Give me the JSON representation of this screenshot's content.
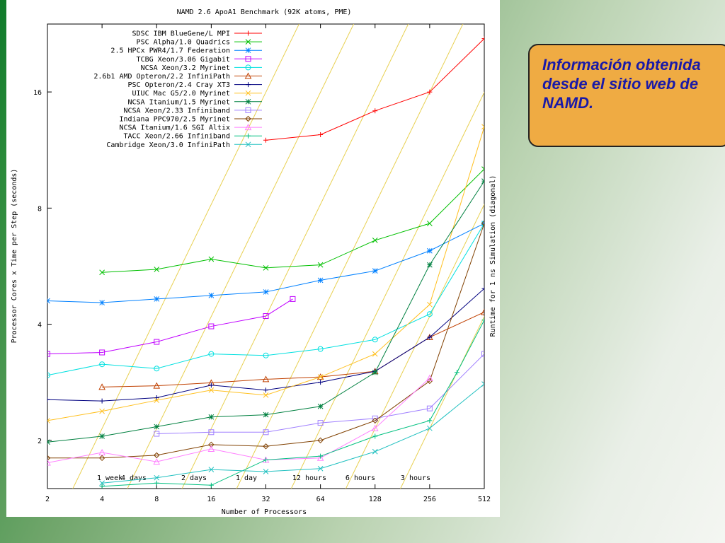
{
  "callout": {
    "text": "Información obtenida desde el sitio web de NAMD."
  },
  "chart_data": {
    "type": "line",
    "title": "NAMD 2.6 ApoA1 Benchmark (92K atoms, PME)",
    "xlabel": "Number of Processors",
    "ylabel": "Processor Cores x Time per Step (seconds)",
    "y2label": "Runtime for 1 ns Simulation (diagonal)",
    "x_scale": "log2",
    "y_scale": "log2",
    "x_ticks": [
      2,
      4,
      8,
      16,
      32,
      64,
      128,
      256,
      512
    ],
    "y_ticks": [
      2,
      4,
      8,
      16
    ],
    "xlim": [
      2,
      512
    ],
    "ylim": [
      1.5,
      24
    ],
    "legend_position": "top-left",
    "diagonal_labels": [
      "1 week",
      "4 days",
      "2 days",
      "1 day",
      "12 hours",
      "6 hours",
      "3 hours"
    ],
    "series": [
      {
        "name": "SDSC IBM BlueGene/L MPI",
        "color": "#ff0000",
        "marker": "plus",
        "x": [
          32,
          64,
          128,
          256,
          512
        ],
        "y": [
          12.0,
          12.4,
          14.3,
          16.0,
          22.0
        ]
      },
      {
        "name": "PSC Alpha/1.0 Quadrics",
        "color": "#00c000",
        "marker": "x",
        "x": [
          4,
          8,
          16,
          32,
          64,
          128,
          256,
          512
        ],
        "y": [
          5.45,
          5.55,
          5.9,
          5.6,
          5.7,
          6.6,
          7.3,
          10.1
        ]
      },
      {
        "name": "2.5 HPCx PWR4/1.7 Federation",
        "color": "#0080ff",
        "marker": "star",
        "x": [
          2,
          4,
          8,
          16,
          32,
          64,
          128,
          256,
          512
        ],
        "y": [
          4.6,
          4.55,
          4.65,
          4.75,
          4.85,
          5.2,
          5.5,
          6.2,
          7.3
        ]
      },
      {
        "name": "TCBG Xeon/3.06 Gigabit",
        "color": "#c000ff",
        "marker": "square",
        "x": [
          2,
          4,
          8,
          16,
          32,
          45
        ],
        "y": [
          3.35,
          3.38,
          3.6,
          3.95,
          4.2,
          4.65
        ]
      },
      {
        "name": "NCSA Xeon/3.2 Myrinet",
        "color": "#00e0e0",
        "marker": "circle",
        "x": [
          2,
          4,
          8,
          16,
          32,
          64,
          128,
          256,
          512
        ],
        "y": [
          2.95,
          3.15,
          3.07,
          3.35,
          3.32,
          3.45,
          3.65,
          4.25,
          7.3
        ]
      },
      {
        "name": "2.6b1 AMD Opteron/2.2 InfiniPath",
        "color": "#c04000",
        "marker": "triangle",
        "x": [
          4,
          8,
          16,
          32,
          64,
          128,
          256,
          512
        ],
        "y": [
          2.75,
          2.77,
          2.82,
          2.88,
          2.92,
          3.02,
          3.7,
          4.3
        ]
      },
      {
        "name": "PSC Opteron/2.4 Cray XT3",
        "color": "#000080",
        "marker": "plus",
        "x": [
          2,
          4,
          8,
          16,
          32,
          64,
          128,
          256,
          512
        ],
        "y": [
          2.55,
          2.53,
          2.58,
          2.78,
          2.7,
          2.83,
          3.02,
          3.7,
          4.95
        ]
      },
      {
        "name": "UIUC Mac G5/2.0 Myrinet",
        "color": "#ffc020",
        "marker": "x",
        "x": [
          2,
          4,
          8,
          16,
          32,
          64,
          128,
          256,
          512
        ],
        "y": [
          2.25,
          2.38,
          2.54,
          2.7,
          2.62,
          2.92,
          3.35,
          4.5,
          13.0
        ]
      },
      {
        "name": "NCSA Itanium/1.5 Myrinet",
        "color": "#008040",
        "marker": "star",
        "x": [
          2,
          4,
          8,
          16,
          32,
          64,
          128,
          256,
          512
        ],
        "y": [
          1.98,
          2.05,
          2.17,
          2.3,
          2.33,
          2.45,
          3.0,
          5.7,
          9.4
        ]
      },
      {
        "name": "NCSA Xeon/2.33 Infiniband",
        "color": "#a080ff",
        "marker": "square",
        "x": [
          8,
          16,
          32,
          64,
          128,
          256,
          512
        ],
        "y": [
          2.08,
          2.1,
          2.1,
          2.22,
          2.28,
          2.42,
          3.35
        ]
      },
      {
        "name": "Indiana PPC970/2.5 Myrinet",
        "color": "#804000",
        "marker": "diamond",
        "x": [
          2,
          4,
          8,
          16,
          32,
          64,
          128,
          256,
          512
        ],
        "y": [
          1.8,
          1.8,
          1.83,
          1.95,
          1.93,
          2.0,
          2.25,
          2.85,
          7.3
        ]
      },
      {
        "name": "NCSA Itanium/1.6 SGI Altix",
        "color": "#ff80ff",
        "marker": "triangle",
        "x": [
          2,
          4,
          8,
          16,
          32,
          64,
          128,
          256
        ],
        "y": [
          1.75,
          1.86,
          1.76,
          1.9,
          1.78,
          1.8,
          2.15,
          2.9
        ]
      },
      {
        "name": "TACC Xeon/2.66 Infiniband",
        "color": "#00c080",
        "marker": "plus",
        "x": [
          4,
          8,
          16,
          32,
          64,
          128,
          256,
          362,
          512
        ],
        "y": [
          1.52,
          1.55,
          1.53,
          1.78,
          1.82,
          2.05,
          2.25,
          3.0,
          4.1
        ]
      },
      {
        "name": "Cambridge Xeon/3.0 InfiniPath",
        "color": "#20c0c0",
        "marker": "x",
        "x": [
          4,
          8,
          16,
          32,
          64,
          128,
          256,
          512
        ],
        "y": [
          1.55,
          1.6,
          1.68,
          1.66,
          1.69,
          1.87,
          2.15,
          2.8
        ]
      }
    ]
  }
}
